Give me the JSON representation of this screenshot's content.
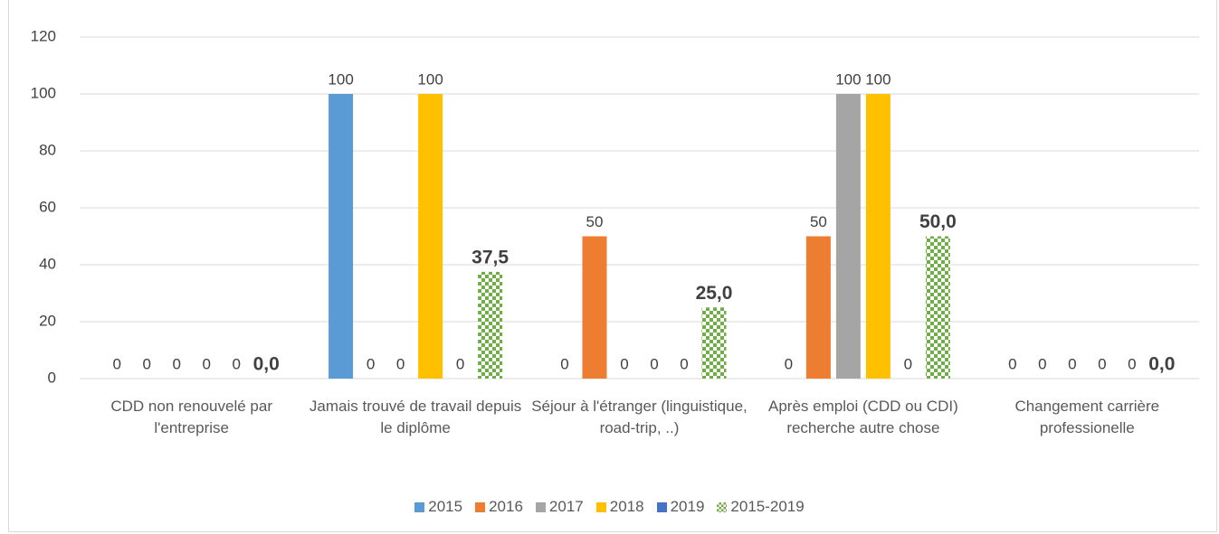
{
  "chart_data": {
    "type": "bar",
    "categories": [
      "CDD non renouvelé par l'entreprise",
      "Jamais trouvé de travail depuis le diplôme",
      "Séjour à l'étranger (linguistique, road-trip, ..)",
      "Après emploi (CDD ou CDI) recherche autre chose",
      "Changement carrière professionelle"
    ],
    "series": [
      {
        "name": "2015",
        "color": "#5b9bd5",
        "values": [
          0,
          100,
          0,
          0,
          0
        ]
      },
      {
        "name": "2016",
        "color": "#ed7d31",
        "values": [
          0,
          0,
          50,
          50,
          0
        ]
      },
      {
        "name": "2017",
        "color": "#a5a5a5",
        "values": [
          0,
          0,
          0,
          100,
          0
        ]
      },
      {
        "name": "2018",
        "color": "#ffc000",
        "values": [
          0,
          100,
          0,
          100,
          0
        ]
      },
      {
        "name": "2019",
        "color": "#4472c4",
        "values": [
          0,
          0,
          0,
          0,
          0
        ]
      },
      {
        "name": "2015-2019",
        "color": "#70ad47",
        "pattern": "checkerboard",
        "values": [
          0.0,
          37.5,
          25.0,
          50.0,
          0.0
        ],
        "value_labels": [
          "0,0",
          "37,5",
          "25,0",
          "50,0",
          "0,0"
        ]
      }
    ],
    "ylim": [
      0,
      120
    ],
    "yticks": [
      0,
      20,
      40,
      60,
      80,
      100,
      120
    ],
    "grid": true,
    "legend": "bottom"
  }
}
